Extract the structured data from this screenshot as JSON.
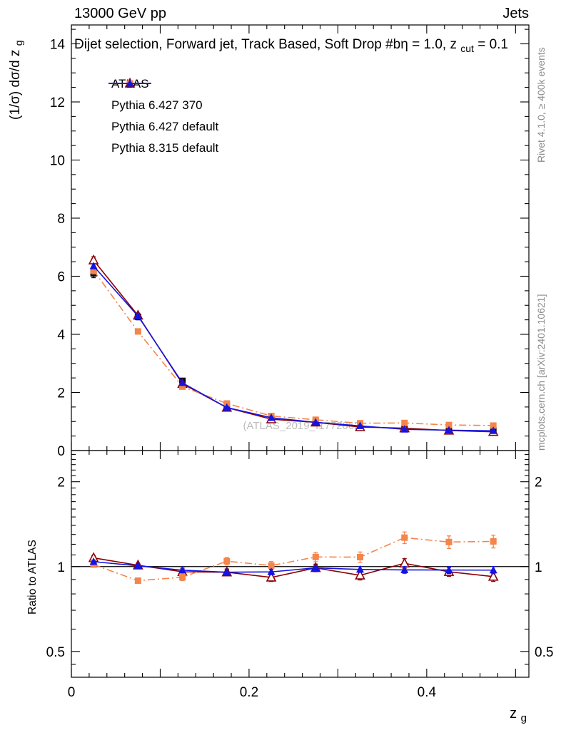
{
  "header": {
    "left": "13000 GeV pp",
    "right": "Jets"
  },
  "panel_title": {
    "text": "Dijet selection, Forward jet, Track Based, Soft Drop #bη = 1.0, z",
    "sub": "cut",
    "suffix": " = 0.1"
  },
  "axis_labels": {
    "y_top": {
      "text": "(1/σ) dσ/d z",
      "sub": "g"
    },
    "y_bottom": "Ratio to ATLAS",
    "x": {
      "text": "z",
      "sub": "g"
    }
  },
  "side_notes": {
    "top_right": "Rivet 4.1.0, ≥ 400k events",
    "bottom_right": "mcplots.cern.ch [arXiv:2401.10621]"
  },
  "watermark": "(ATLAS_2019_I1772062)",
  "chart_data": {
    "type": "line",
    "title": "Dijet selection, Forward jet, Track Based, Soft Drop #bη = 1.0, z_cut = 0.1",
    "xlabel": "z_g",
    "ylabel_main": "(1/σ) dσ/d z_g",
    "ylabel_ratio": "Ratio to ATLAS",
    "x": [
      0.025,
      0.075,
      0.125,
      0.175,
      0.225,
      0.275,
      0.325,
      0.375,
      0.425,
      0.475
    ],
    "x_bin_width": 0.05,
    "xlim": [
      0,
      0.515
    ],
    "xticks_labeled": [
      {
        "v": 0,
        "label": "0"
      },
      {
        "v": 0.2,
        "label": "0.2"
      },
      {
        "v": 0.4,
        "label": "0.4"
      }
    ],
    "xticks_major": [
      0,
      0.1,
      0.2,
      0.3,
      0.4,
      0.5
    ],
    "x_minor_step": 0.02,
    "main_panel": {
      "ylim": [
        0,
        14.65
      ],
      "yticks": [
        0,
        2,
        4,
        6,
        8,
        10,
        12,
        14
      ],
      "y_minor_step": 0.5,
      "grid": false
    },
    "ratio_panel": {
      "yscale": "log",
      "ylim": [
        0.405,
        2.58
      ],
      "yticks": [
        0.5,
        1,
        2
      ],
      "yticks_minor": [
        0.45,
        0.6,
        0.7,
        0.8,
        0.9,
        1.1,
        1.2,
        1.3,
        1.4,
        1.5,
        1.6,
        1.7,
        1.8,
        1.9,
        2.1,
        2.2,
        2.3,
        2.4,
        2.5
      ],
      "reference_line": 1
    },
    "legend_position": "top-left-inside",
    "series": [
      {
        "name": "ATLAS",
        "color": "#000000",
        "marker": "square",
        "line": "none",
        "is_reference": true,
        "values": [
          6.1,
          4.6,
          2.4,
          1.55,
          1.18,
          0.98,
          0.87,
          0.75,
          0.72,
          0.7
        ],
        "errors": [
          0.15,
          0.1,
          0.06,
          0.05,
          0.04,
          0.035,
          0.03,
          0.03,
          0.03,
          0.03
        ]
      },
      {
        "name": "Pythia 6.427 370",
        "color": "#8b0000",
        "marker": "triangle-open",
        "line": "solid",
        "values": [
          6.55,
          4.65,
          2.3,
          1.48,
          1.08,
          0.97,
          0.81,
          0.77,
          0.69,
          0.645
        ],
        "errors": [
          0.12,
          0.08,
          0.05,
          0.04,
          0.035,
          0.03,
          0.03,
          0.03,
          0.025,
          0.025
        ]
      },
      {
        "name": "Pythia 6.427 default",
        "color": "#f5854a",
        "marker": "square",
        "line": "dashdot",
        "values": [
          6.2,
          4.1,
          2.2,
          1.62,
          1.19,
          1.06,
          0.94,
          0.95,
          0.88,
          0.86
        ],
        "errors": [
          0.12,
          0.09,
          0.06,
          0.05,
          0.04,
          0.04,
          0.04,
          0.045,
          0.045,
          0.045
        ]
      },
      {
        "name": "Pythia 8.315 default",
        "color": "#1414e0",
        "marker": "triangle",
        "line": "solid",
        "values": [
          6.35,
          4.63,
          2.33,
          1.48,
          1.13,
          0.97,
          0.85,
          0.73,
          0.7,
          0.68
        ],
        "errors": [
          0.08,
          0.06,
          0.04,
          0.03,
          0.025,
          0.02,
          0.02,
          0.02,
          0.02,
          0.02
        ]
      }
    ]
  }
}
